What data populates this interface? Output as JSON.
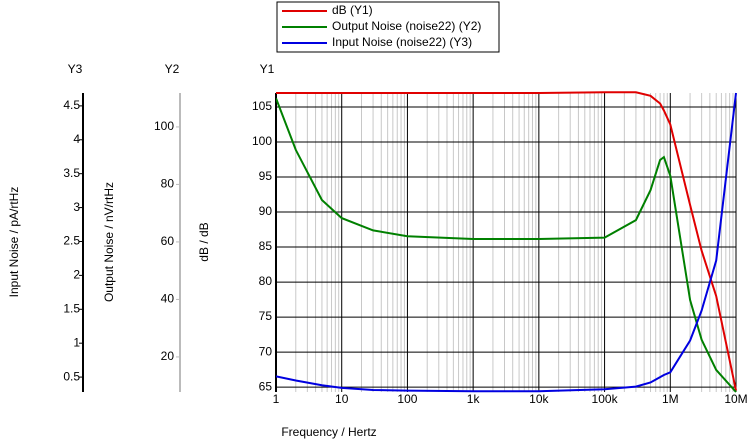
{
  "chart_data": {
    "type": "line",
    "xlabel": "Frequency / Hertz",
    "xscale": "log",
    "xlim": [
      1,
      10000000
    ],
    "xticks": [
      1,
      10,
      100,
      {
        "value": 1000,
        "label": "1k"
      },
      {
        "value": 10000,
        "label": "10k"
      },
      {
        "value": 100000,
        "label": "100k"
      },
      {
        "value": 1000000,
        "label": "1M"
      },
      {
        "value": 10000000,
        "label": "10M"
      }
    ],
    "minor_grid": true,
    "grid": true,
    "y_name": "Y1",
    "ylabel": "dB / dB",
    "ylim": [
      64.3,
      107
    ],
    "yticks": [
      65,
      70,
      75,
      80,
      85,
      90,
      95,
      100,
      105
    ],
    "y2_name": "Y2",
    "y2label": "Output Noise / nV/rtHz",
    "y2lim": [
      7.8,
      111.8
    ],
    "y2ticks": [
      20,
      40,
      60,
      80,
      100
    ],
    "y3_name": "Y3",
    "y3label": "Input Noise / pA/rtHz",
    "y3lim": [
      0.28,
      4.69
    ],
    "y3ticks": [
      0.5,
      1,
      1.5,
      2,
      2.5,
      3,
      3.5,
      4,
      4.5
    ],
    "x": [
      1,
      2,
      5,
      10,
      30,
      100,
      1000,
      10000,
      100000,
      300000,
      500000,
      700000,
      800000,
      1000000,
      2000000,
      3000000,
      5000000,
      10000000
    ],
    "series": [
      {
        "name": "dB (Y1)",
        "color": "#e00000",
        "axis": "y",
        "values": [
          107,
          107,
          107,
          107,
          107,
          107,
          107,
          107,
          107.1,
          107.1,
          106.6,
          105.5,
          104.5,
          102.5,
          91,
          84.5,
          78,
          64.5
        ]
      },
      {
        "name": "Output Noise (noise22) (Y2)",
        "color": "#008000",
        "axis": "y2",
        "values": [
          110,
          92,
          74.6,
          68.3,
          64,
          62,
          61,
          61,
          61.5,
          67.6,
          78,
          88.5,
          89.5,
          83,
          39.8,
          26,
          15.5,
          7.8
        ]
      },
      {
        "name": "Input Noise (noise22) (Y3)",
        "color": "#0000e0",
        "axis": "y3",
        "values": [
          0.51,
          0.45,
          0.38,
          0.34,
          0.31,
          0.3,
          0.29,
          0.29,
          0.32,
          0.36,
          0.42,
          0.5,
          0.53,
          0.57,
          1.04,
          1.48,
          2.22,
          4.69
        ]
      }
    ]
  }
}
